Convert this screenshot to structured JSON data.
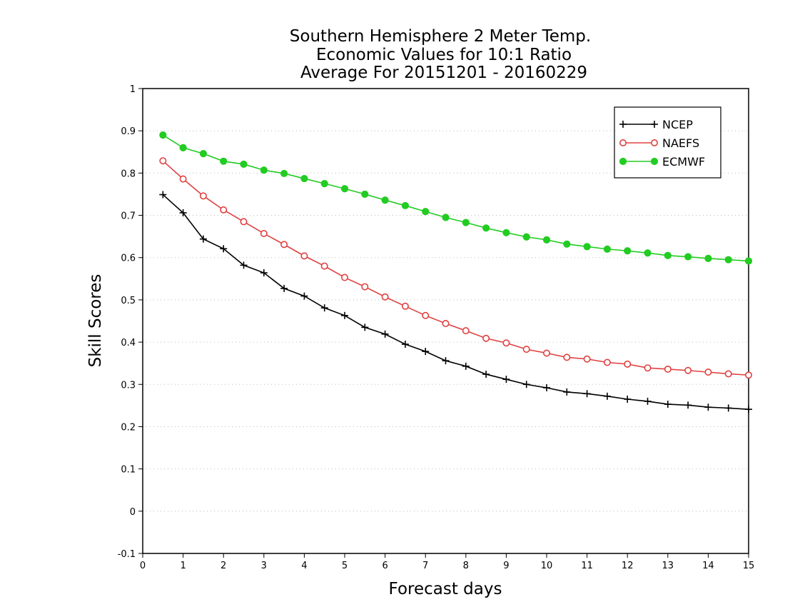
{
  "chart_data": {
    "type": "line",
    "title": [
      "Southern Hemisphere 2 Meter Temp.",
      "Economic Values for 10:1 Ratio",
      "Average For 20151201 - 20160229"
    ],
    "xlabel": "Forecast days",
    "ylabel": "Skill Scores",
    "xlim": [
      0,
      15
    ],
    "ylim": [
      -0.1,
      1
    ],
    "x_ticks": [
      0,
      1,
      2,
      3,
      4,
      5,
      6,
      7,
      8,
      9,
      10,
      11,
      12,
      13,
      14,
      15
    ],
    "y_ticks": [
      -0.1,
      0,
      0.1,
      0.2,
      0.3,
      0.4,
      0.5,
      0.6,
      0.7,
      0.8,
      0.9,
      1
    ],
    "y_tick_labels": [
      "-0.1",
      "0",
      "0.1",
      "0.2",
      "0.3",
      "0.4",
      "0.5",
      "0.6",
      "0.7",
      "0.8",
      "0.9",
      "1"
    ],
    "grid": "horizontal dotted",
    "legend_position": "top-right",
    "x": [
      0.5,
      1,
      1.5,
      2,
      2.5,
      3,
      3.5,
      4,
      4.5,
      5,
      5.5,
      6,
      6.5,
      7,
      7.5,
      8,
      8.5,
      9,
      9.5,
      10,
      10.5,
      11,
      11.5,
      12,
      12.5,
      13,
      13.5,
      14,
      14.5,
      15
    ],
    "series": [
      {
        "name": "NCEP",
        "color": "#000000",
        "marker": "plus",
        "values": [
          0.749,
          0.706,
          0.644,
          0.621,
          0.582,
          0.564,
          0.527,
          0.509,
          0.481,
          0.463,
          0.435,
          0.419,
          0.395,
          0.378,
          0.356,
          0.343,
          0.324,
          0.312,
          0.3,
          0.292,
          0.282,
          0.278,
          0.272,
          0.265,
          0.26,
          0.253,
          0.251,
          0.246,
          0.244,
          0.241
        ]
      },
      {
        "name": "NAEFS",
        "color": "#e04040",
        "marker": "open-circle",
        "values": [
          0.829,
          0.786,
          0.746,
          0.713,
          0.685,
          0.657,
          0.631,
          0.604,
          0.58,
          0.553,
          0.531,
          0.507,
          0.485,
          0.463,
          0.444,
          0.427,
          0.409,
          0.398,
          0.383,
          0.374,
          0.364,
          0.36,
          0.352,
          0.348,
          0.339,
          0.336,
          0.333,
          0.329,
          0.325,
          0.322
        ]
      },
      {
        "name": "ECMWF",
        "color": "#22cc22",
        "marker": "filled-circle",
        "values": [
          0.89,
          0.86,
          0.846,
          0.828,
          0.821,
          0.807,
          0.799,
          0.787,
          0.775,
          0.763,
          0.75,
          0.736,
          0.723,
          0.709,
          0.695,
          0.683,
          0.67,
          0.659,
          0.649,
          0.642,
          0.632,
          0.626,
          0.62,
          0.616,
          0.611,
          0.605,
          0.602,
          0.598,
          0.595,
          0.592
        ]
      }
    ]
  }
}
